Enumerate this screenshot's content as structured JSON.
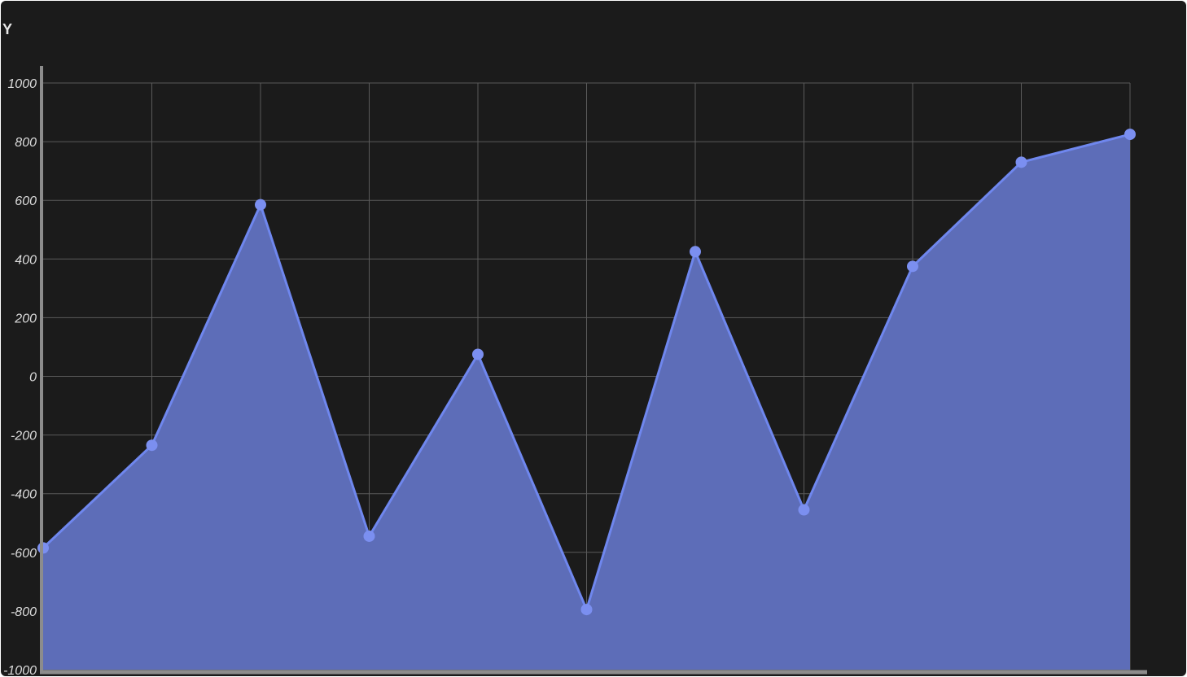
{
  "chart_data": {
    "type": "area",
    "ylabel": "Y",
    "xlabel": "",
    "x": [
      0,
      1,
      2,
      3,
      4,
      5,
      6,
      7,
      8,
      9,
      10
    ],
    "series": [
      {
        "values": [
          -585,
          -235,
          585,
          -545,
          75,
          -795,
          425,
          -455,
          375,
          730,
          825
        ],
        "color": "#6f87ee",
        "fill": "#5d6db8"
      }
    ],
    "ylim": [
      -1000,
      1000
    ],
    "yticks": [
      1000,
      800,
      600,
      400,
      200,
      0,
      -200,
      -400,
      -600,
      -800,
      -1000
    ],
    "ytick_labels": [
      "1000",
      "800",
      "600",
      "400",
      "200",
      "0",
      "-200",
      "-400",
      "-600",
      "-800",
      "-1000"
    ],
    "grid": true,
    "colors": {
      "background": "#1b1b1b",
      "grid": "#5a5a5a",
      "axis": "#8c8c8c",
      "line": "#6f87ee",
      "area": "#5d6db8",
      "marker": "#7b8ff0"
    }
  }
}
